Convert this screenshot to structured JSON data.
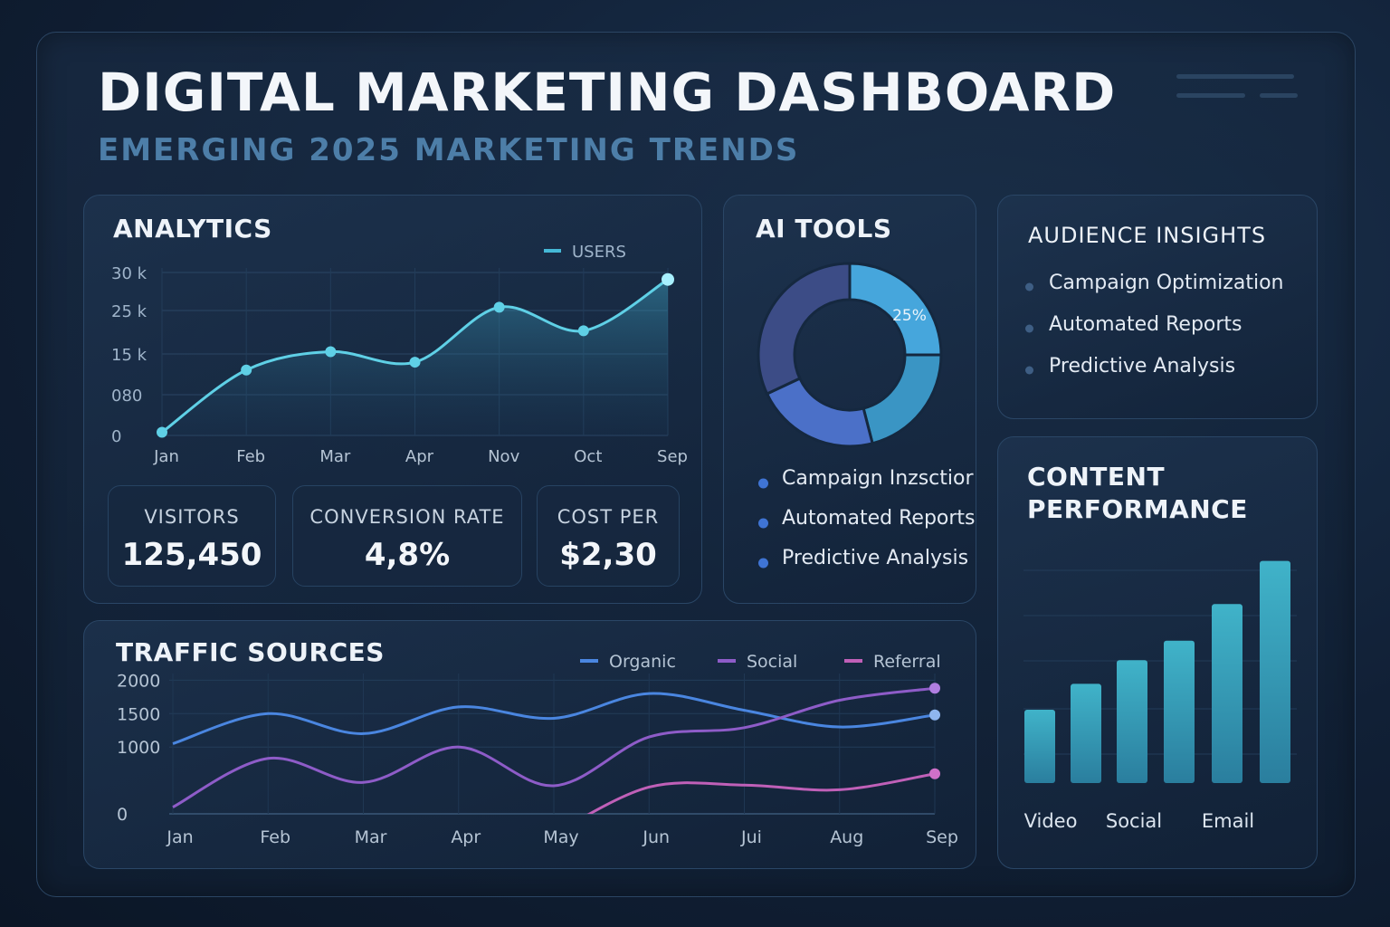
{
  "header": {
    "title": "DIGITAL MARKETING DASHBOARD",
    "subtitle": "EMERGING 2025 MARKETING TRENDS"
  },
  "analytics": {
    "title": "ANALYTICS",
    "kpis": [
      {
        "label": "VISITORS",
        "value": "125,450"
      },
      {
        "label": "CONVERSION RATE",
        "value": "4,8%"
      },
      {
        "label": "COST PER",
        "value": "$2,30"
      }
    ]
  },
  "ai_tools": {
    "title": "AI TOOLS",
    "items": [
      "Campaign Inzsctior",
      "Automated Reports",
      "Predictive Analysis"
    ]
  },
  "audience": {
    "title": "AUDIENCE INSIGHTS",
    "items": [
      "Campaign Optimization",
      "Automated Reports",
      "Predictive Analysis"
    ]
  },
  "content": {
    "title_line1": "CONTENT",
    "title_line2": "PERFORMANCE"
  },
  "traffic": {
    "title": "TRAFFIC SOURCES"
  },
  "colors": {
    "users_line": "#5fd0e6",
    "organic": "#4a86e0",
    "social": "#8e5cc8",
    "referral": "#c060b8",
    "bars": "#3aa3bd"
  },
  "chart_data": [
    {
      "id": "analytics",
      "type": "line",
      "legend": [
        "USERS"
      ],
      "y_tick_labels": [
        "0",
        "080",
        "15 k",
        "25 k",
        "30 k"
      ],
      "categories": [
        "Jan",
        "Feb",
        "Mar",
        "Apr",
        "Nov",
        "Oct",
        "Sep"
      ],
      "series": [
        {
          "name": "USERS",
          "values": [
            600,
            12500,
            16000,
            14000,
            24500,
            20000,
            29800
          ]
        }
      ],
      "ylim": [
        0,
        32000
      ],
      "grid": true
    },
    {
      "id": "ai_tools",
      "type": "pie",
      "donut": true,
      "slice_label": "25%",
      "slices": [
        {
          "value": 25,
          "color": "#46a6dc"
        },
        {
          "value": 21,
          "color": "#3a95c4"
        },
        {
          "value": 22,
          "color": "#4b70c8"
        },
        {
          "value": 32,
          "color": "#3c4c86"
        }
      ]
    },
    {
      "id": "traffic",
      "type": "line",
      "legend": [
        "Organic",
        "Social",
        "Referral"
      ],
      "y_ticks": [
        0,
        1000,
        1500,
        2000
      ],
      "categories": [
        "Jan",
        "Feb",
        "Mar",
        "Apr",
        "May",
        "Jun",
        "Jui",
        "Aug",
        "Sep"
      ],
      "series": [
        {
          "name": "Organic",
          "values": [
            1050,
            1500,
            1200,
            1600,
            1430,
            1800,
            1550,
            1300,
            1480
          ]
        },
        {
          "name": "Social",
          "values": [
            100,
            830,
            470,
            1000,
            420,
            1150,
            1290,
            1700,
            1880
          ]
        },
        {
          "name": "Referral",
          "values": [
            null,
            null,
            null,
            null,
            -300,
            400,
            430,
            360,
            600
          ]
        }
      ],
      "ylim": [
        0,
        2100
      ],
      "grid": true
    },
    {
      "id": "content",
      "type": "bar",
      "category_labels": [
        "Video",
        "Social",
        "Email"
      ],
      "values": [
        34,
        46,
        57,
        66,
        83,
        103
      ],
      "ylim": [
        0,
        110
      ],
      "grid": true
    }
  ]
}
